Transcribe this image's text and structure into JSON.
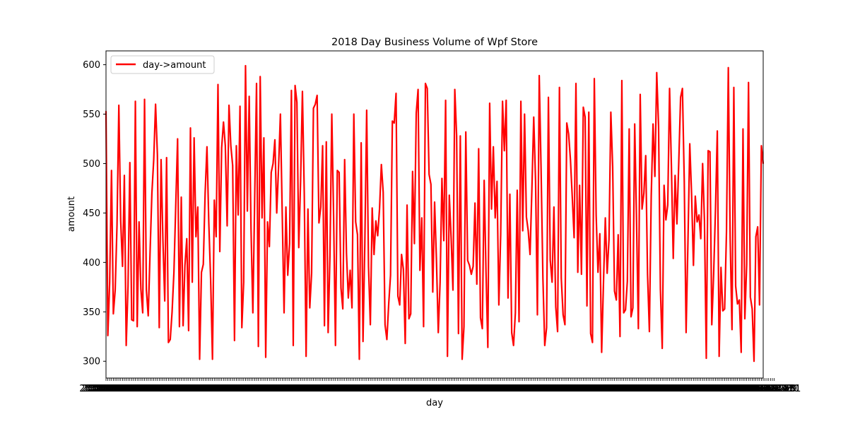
{
  "chart_data": {
    "type": "line",
    "title": "2018 Day Business Volume of Wpf Store",
    "xlabel": "day",
    "ylabel": "amount",
    "ylim": [
      283,
      614
    ],
    "yticks": [
      300,
      350,
      400,
      450,
      500,
      550,
      600
    ],
    "grid": false,
    "legend_position": "top-left",
    "x_start_date": "2018-01-01",
    "x_date_count": 365,
    "series": [
      {
        "name": "day->amount",
        "color": "#ff0000",
        "values": [
          553,
          326,
          380,
          493,
          348,
          372,
          438,
          559,
          442,
          396,
          488,
          316,
          376,
          501,
          342,
          341,
          563,
          335,
          441,
          373,
          349,
          565,
          372,
          346,
          410,
          470,
          504,
          560,
          509,
          334,
          504,
          423,
          361,
          506,
          319,
          322,
          350,
          390,
          458,
          525,
          335,
          466,
          336,
          397,
          424,
          331,
          536,
          380,
          526,
          426,
          456,
          302,
          390,
          398,
          470,
          517,
          440,
          383,
          302,
          463,
          426,
          580,
          411,
          516,
          542,
          518,
          437,
          559,
          518,
          498,
          321,
          518,
          448,
          558,
          334,
          380,
          599,
          452,
          568,
          434,
          349,
          465,
          581,
          315,
          588,
          445,
          526,
          304,
          441,
          416,
          491,
          500,
          524,
          450,
          496,
          550,
          449,
          349,
          456,
          387,
          419,
          574,
          316,
          579,
          562,
          415,
          482,
          573,
          470,
          305,
          454,
          354,
          389,
          556,
          560,
          569,
          440,
          456,
          518,
          336,
          522,
          329,
          407,
          550,
          445,
          316,
          493,
          491,
          374,
          353,
          504,
          409,
          364,
          392,
          354,
          550,
          441,
          428,
          302,
          521,
          320,
          420,
          554,
          396,
          337,
          455,
          408,
          442,
          427,
          454,
          499,
          471,
          337,
          322,
          358,
          387,
          543,
          541,
          571,
          366,
          357,
          408,
          393,
          318,
          458,
          343,
          348,
          492,
          419,
          551,
          575,
          392,
          445,
          335,
          581,
          576,
          489,
          479,
          370,
          461,
          403,
          329,
          380,
          485,
          422,
          564,
          305,
          468,
          425,
          372,
          575,
          528,
          328,
          528,
          302,
          335,
          532,
          402,
          397,
          388,
          396,
          460,
          378,
          515,
          344,
          333,
          483,
          391,
          314,
          561,
          454,
          517,
          445,
          482,
          357,
          428,
          563,
          513,
          564,
          364,
          469,
          329,
          316,
          349,
          473,
          340,
          563,
          432,
          550,
          446,
          432,
          408,
          474,
          547,
          482,
          347,
          589,
          495,
          384,
          316,
          334,
          567,
          402,
          380,
          456,
          355,
          330,
          577,
          384,
          347,
          337,
          541,
          530,
          504,
          466,
          425,
          581,
          390,
          478,
          388,
          557,
          547,
          356,
          552,
          328,
          319,
          586,
          448,
          390,
          429,
          309,
          380,
          445,
          389,
          423,
          552,
          497,
          371,
          362,
          428,
          325,
          584,
          349,
          352,
          381,
          535,
          345,
          354,
          540,
          442,
          333,
          570,
          454,
          470,
          508,
          388,
          330,
          467,
          540,
          487,
          592,
          538,
          373,
          313,
          478,
          443,
          458,
          576,
          497,
          404,
          488,
          439,
          501,
          567,
          576,
          482,
          329,
          420,
          520,
          468,
          397,
          467,
          441,
          448,
          424,
          500,
          442,
          303,
          513,
          512,
          337,
          388,
          453,
          533,
          305,
          395,
          351,
          353,
          431,
          597,
          425,
          332,
          577,
          376,
          358,
          362,
          309,
          535,
          343,
          398,
          582,
          365,
          353,
          300,
          426,
          436,
          357,
          518,
          500
        ]
      }
    ]
  }
}
